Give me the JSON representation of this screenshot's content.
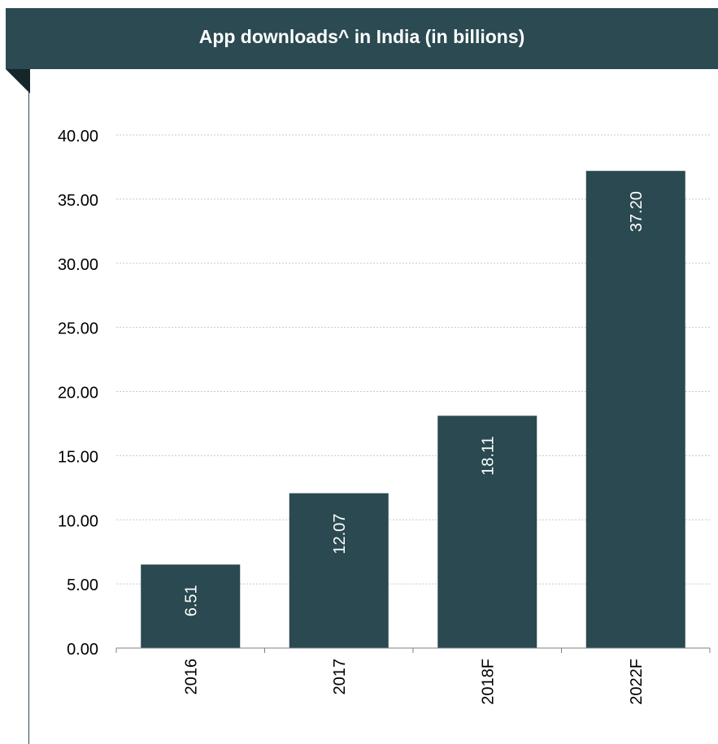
{
  "header": {
    "title": "App downloads^ in India (in billions)"
  },
  "colors": {
    "header_bg": "#2b4a52",
    "bar": "#2a4950",
    "label_inside": "#ffffff"
  },
  "chart_data": {
    "type": "bar",
    "title": "App downloads^ in India (in billions)",
    "xlabel": "",
    "ylabel": "",
    "categories": [
      "2016",
      "2017",
      "2018F",
      "2022F"
    ],
    "values": [
      6.51,
      12.07,
      18.11,
      37.2
    ],
    "value_labels": [
      "6.51",
      "12.07",
      "18.11",
      "37.20"
    ],
    "ylim": [
      0,
      40
    ],
    "yticks": [
      "0.00",
      "5.00",
      "10.00",
      "15.00",
      "20.00",
      "25.00",
      "30.00",
      "35.00",
      "40.00"
    ],
    "grid": true,
    "grid_style": "dashed",
    "legend": false
  }
}
